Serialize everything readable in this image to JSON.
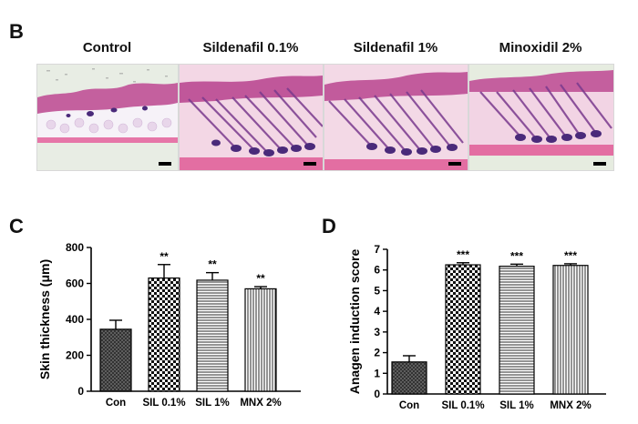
{
  "panels": {
    "b_label": "B",
    "c_label": "C",
    "d_label": "D"
  },
  "micrographs": [
    {
      "title": "Control",
      "follicles": "sparse"
    },
    {
      "title": "Sildenafil 0.1%",
      "follicles": "dense"
    },
    {
      "title": "Sildenafil 1%",
      "follicles": "dense"
    },
    {
      "title": "Minoxidil 2%",
      "follicles": "dense"
    }
  ],
  "colors": {
    "epidermis": "#c0579a",
    "dermis": "#f0bdd8",
    "fat": "#f3f0f6",
    "muscle": "#e0709f",
    "follicle": "#4a2a7a",
    "background": "#e6ece0"
  },
  "chart_data": [
    {
      "type": "bar",
      "title": "",
      "xlabel": "",
      "ylabel": "Skin thickness (μm)",
      "ylim": [
        0,
        800
      ],
      "yticks": [
        0,
        200,
        400,
        600,
        800
      ],
      "categories": [
        "Con",
        "SIL 0.1%",
        "SIL 1%",
        "MNX 2%"
      ],
      "values": [
        345,
        630,
        618,
        570
      ],
      "errors": [
        50,
        75,
        42,
        12
      ],
      "significance": [
        "",
        "**",
        "**",
        "**"
      ],
      "patterns": [
        "crosshatch-dark",
        "checker",
        "horizontal",
        "vertical"
      ]
    },
    {
      "type": "bar",
      "title": "",
      "xlabel": "",
      "ylabel": "Anagen induction score",
      "ylim": [
        0,
        7
      ],
      "yticks": [
        0,
        1,
        2,
        3,
        4,
        5,
        6,
        7
      ],
      "categories": [
        "Con",
        "SIL 0.1%",
        "SIL 1%",
        "MNX 2%"
      ],
      "values": [
        1.55,
        6.25,
        6.18,
        6.22
      ],
      "errors": [
        0.3,
        0.1,
        0.1,
        0.08
      ],
      "significance": [
        "",
        "***",
        "***",
        "***"
      ],
      "patterns": [
        "crosshatch-dark",
        "checker",
        "horizontal",
        "vertical"
      ]
    }
  ]
}
